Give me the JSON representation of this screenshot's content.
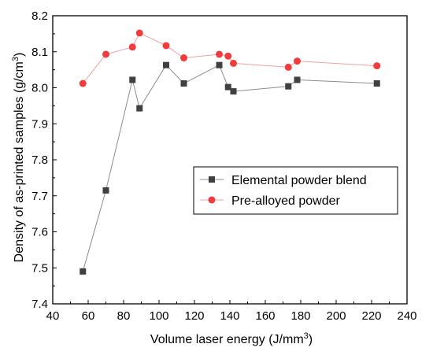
{
  "chart_data": {
    "type": "line",
    "xlabel": "Volume laser energy (J/mm",
    "xlabel_sup": "3",
    "xlabel_end": ")",
    "ylabel": "Density of as-printed samples (g/cm",
    "ylabel_sup": "3",
    "ylabel_end": ")",
    "xlim": [
      40,
      240
    ],
    "ylim": [
      7.4,
      8.2
    ],
    "xticks": [
      "40",
      "60",
      "80",
      "100",
      "120",
      "140",
      "160",
      "180",
      "200",
      "220",
      "240"
    ],
    "yticks": [
      "7.4",
      "7.5",
      "7.6",
      "7.7",
      "7.8",
      "7.9",
      "8.0",
      "8.1",
      "8.2"
    ],
    "legend_position": "center-right",
    "series": [
      {
        "name": "Elemental powder blend",
        "marker": "square",
        "color": "#404040",
        "line_color": "#8c8c8c",
        "x": [
          57,
          70,
          85,
          89,
          104,
          114,
          134,
          139,
          142,
          173,
          178,
          223
        ],
        "y": [
          7.49,
          7.715,
          8.022,
          7.943,
          8.063,
          8.012,
          8.063,
          8.002,
          7.99,
          8.004,
          8.022,
          8.012
        ]
      },
      {
        "name": "Pre-alloyed powder",
        "marker": "circle",
        "color": "#f03c3c",
        "line_color": "#f4a0a0",
        "x": [
          57,
          70,
          85,
          89,
          104,
          114,
          134,
          139,
          142,
          173,
          178,
          223
        ],
        "y": [
          8.012,
          8.093,
          8.113,
          8.152,
          8.117,
          8.083,
          8.093,
          8.088,
          8.068,
          8.057,
          8.074,
          8.061
        ]
      }
    ]
  }
}
